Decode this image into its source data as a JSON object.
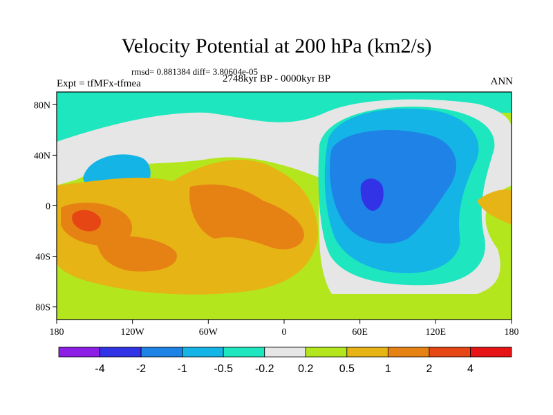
{
  "header": {
    "title": "Velocity Potential at 200 hPa (km2/s)",
    "stats": "rmsd= 0.881384  diff= 3.80604e-05",
    "experiment": "Expt = tfMFx-tfmea",
    "period": "2748kyr BP - 0000kyr BP",
    "season": "ANN"
  },
  "chart_data": {
    "type": "heatmap",
    "projection": "cylindrical equidistant",
    "variable": "Velocity Potential at 200 hPa",
    "units": "km2/s",
    "xlim": [
      -180,
      180
    ],
    "ylim": [
      -90,
      90
    ],
    "x_ticks": [
      {
        "value": -180,
        "label": "180"
      },
      {
        "value": -120,
        "label": "120W"
      },
      {
        "value": -60,
        "label": "60W"
      },
      {
        "value": 0,
        "label": "0"
      },
      {
        "value": 60,
        "label": "60E"
      },
      {
        "value": 120,
        "label": "120E"
      },
      {
        "value": 180,
        "label": "180"
      }
    ],
    "y_ticks": [
      {
        "value": 80,
        "label": "80N"
      },
      {
        "value": 40,
        "label": "40N"
      },
      {
        "value": 0,
        "label": "0"
      },
      {
        "value": -40,
        "label": "40S"
      },
      {
        "value": -80,
        "label": "80S"
      }
    ],
    "contour_levels": [
      {
        "value": -4,
        "label": "-4"
      },
      {
        "value": -2,
        "label": "-2"
      },
      {
        "value": -1,
        "label": "-1"
      },
      {
        "value": -0.5,
        "label": "-0.5"
      },
      {
        "value": -0.2,
        "label": "-0.2"
      },
      {
        "value": 0.2,
        "label": "0.2"
      },
      {
        "value": 0.5,
        "label": "0.5"
      },
      {
        "value": 1,
        "label": "1"
      },
      {
        "value": 2,
        "label": "2"
      },
      {
        "value": 4,
        "label": "4"
      }
    ],
    "colorbar_colors": [
      "#8c1ee6",
      "#3232e6",
      "#1e82e6",
      "#14b4e6",
      "#1ee6be",
      "#e6e6e6",
      "#b4e61e",
      "#e6b414",
      "#e68214",
      "#e64614",
      "#e61414"
    ],
    "field_features": [
      {
        "kind": "high",
        "lon": -165,
        "lat": -15,
        "value": 2.5
      },
      {
        "kind": "high",
        "lon": -45,
        "lat": -10,
        "value": 2.2
      },
      {
        "kind": "high",
        "lon": -25,
        "lat": -15,
        "value": 1.8
      },
      {
        "kind": "high",
        "lon": -135,
        "lat": -35,
        "value": 1.4
      },
      {
        "kind": "low",
        "lon": 60,
        "lat": 5,
        "value": -4.2
      },
      {
        "kind": "low",
        "lon": 80,
        "lat": 20,
        "value": -2.0
      },
      {
        "kind": "low",
        "lon": 95,
        "lat": -20,
        "value": -1.2
      },
      {
        "kind": "low",
        "lon": 80,
        "lat": 65,
        "value": -1.0
      },
      {
        "kind": "low",
        "lon": -140,
        "lat": 15,
        "value": -0.8
      }
    ]
  }
}
